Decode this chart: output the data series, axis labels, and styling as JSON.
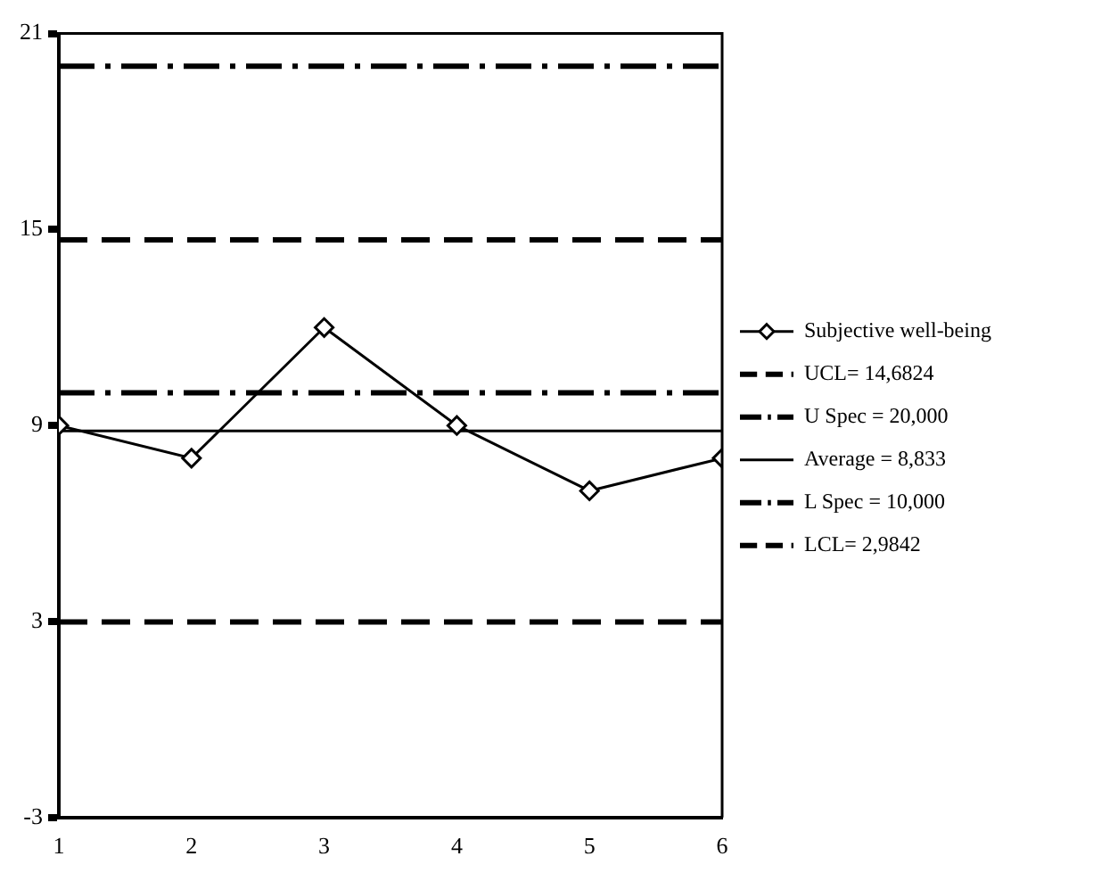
{
  "chart_data": {
    "type": "line",
    "x": [
      1,
      2,
      3,
      4,
      5,
      6
    ],
    "series": [
      {
        "name": "Subjective well-being",
        "color": "#000000",
        "values": [
          9,
          8,
          12,
          9,
          7,
          8
        ]
      }
    ],
    "marker": "diamond",
    "line_style": "solid",
    "xlim": [
      1,
      6
    ],
    "xticks": [
      1,
      2,
      3,
      4,
      5,
      6
    ],
    "ylim": [
      -3,
      21
    ],
    "yticks": [
      -3,
      3,
      9,
      15,
      21
    ],
    "grid": false,
    "legend": "right",
    "ref_lines": [
      {
        "axis": "y",
        "value": 14.6824,
        "label": "UCL= 14,6824",
        "color": "#000000",
        "line_style": "dashed"
      },
      {
        "axis": "y",
        "value": 20,
        "label": "U Spec = 20,000",
        "color": "#000000",
        "line_style": "dashdot"
      },
      {
        "axis": "y",
        "value": 8.833,
        "label": "Average = 8,833",
        "color": "#000000",
        "line_style": "solid"
      },
      {
        "axis": "y",
        "value": 10,
        "label": "L Spec = 10,000",
        "color": "#000000",
        "line_style": "dashdot"
      },
      {
        "axis": "y",
        "value": 2.9842,
        "label": "LCL= 2,9842",
        "color": "#000000",
        "line_style": "dashed"
      }
    ]
  }
}
